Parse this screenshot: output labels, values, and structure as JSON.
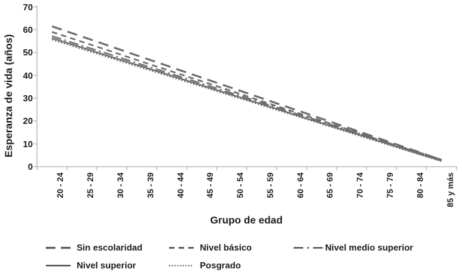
{
  "figure": {
    "background": "#ffffff",
    "text_color": "#1c1c1c",
    "series_line_color": "#6d6d6d",
    "legend_line_color": "#4f4f4f",
    "axis_color": "#b8b8b8"
  },
  "chart_data": {
    "type": "line",
    "title": "",
    "xlabel": "Grupo de edad",
    "ylabel": "Esperanza de vida (años)",
    "ylim": [
      0,
      70
    ],
    "yticks": [
      0,
      10,
      20,
      30,
      40,
      50,
      60,
      70
    ],
    "grid": false,
    "legend_position": "bottom",
    "categories": [
      "20 - 24",
      "25 - 29",
      "30 - 34",
      "35 - 39",
      "40 - 44",
      "45 - 49",
      "50 - 54",
      "55 - 59",
      "60 - 64",
      "65 - 69",
      "70 - 74",
      "75 - 79",
      "80 - 84",
      "85 y más"
    ],
    "series": [
      {
        "name": "Sin escolaridad",
        "values": [
          61.5,
          57.0,
          52.5,
          48.0,
          43.5,
          39.0,
          34.5,
          30.0,
          25.5,
          21.0,
          16.5,
          12.0,
          7.5,
          3.0
        ]
      },
      {
        "name": "Nivel básico",
        "values": [
          59.0,
          54.7,
          50.4,
          46.0,
          41.7,
          37.4,
          33.1,
          28.7,
          24.4,
          20.1,
          15.8,
          11.4,
          7.1,
          2.8
        ]
      },
      {
        "name": "Nivel medio superior",
        "values": [
          57.2,
          53.0,
          48.9,
          44.7,
          40.6,
          36.4,
          32.2,
          28.1,
          23.9,
          19.7,
          15.6,
          11.4,
          7.3,
          3.1
        ]
      },
      {
        "name": "Nivel superior",
        "values": [
          56.3,
          52.2,
          48.0,
          43.9,
          39.8,
          35.6,
          31.5,
          27.4,
          23.2,
          19.1,
          15.0,
          10.9,
          6.7,
          2.6
        ]
      },
      {
        "name": "Posgrado",
        "values": [
          55.6,
          51.5,
          47.4,
          43.3,
          39.2,
          35.1,
          31.0,
          26.9,
          22.8,
          18.7,
          14.6,
          10.5,
          6.4,
          2.3
        ]
      }
    ]
  }
}
